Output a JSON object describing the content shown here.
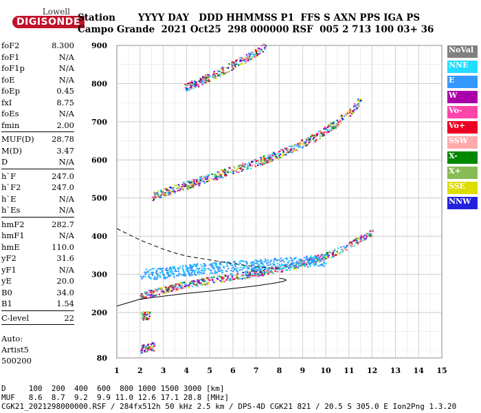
{
  "logo": {
    "brand": "Lowell",
    "name": "DIGISONDE"
  },
  "header": {
    "line1": "Station       YYYY DAY   DDD HHMMSS P1  FFS S AXN PPS IGA PS",
    "line2": "Campo Grande  2021 Oct25  298 000000 RSF  005 2 713 100 03+ 36"
  },
  "params": {
    "group1": [
      {
        "label": "foF2",
        "value": "8.300"
      },
      {
        "label": "foF1",
        "value": "N/A"
      },
      {
        "label": "foF1p",
        "value": "N/A"
      },
      {
        "label": "foE",
        "value": "N/A"
      },
      {
        "label": "foEp",
        "value": "0.45"
      },
      {
        "label": "fxI",
        "value": "8.75"
      },
      {
        "label": "foEs",
        "value": "N/A"
      },
      {
        "label": "fmin",
        "value": "2.00"
      }
    ],
    "group2": [
      {
        "label": "MUF(D)",
        "value": "28.78"
      },
      {
        "label": "M(D)",
        "value": "3.47"
      },
      {
        "label": "D",
        "value": "N/A"
      }
    ],
    "group3": [
      {
        "label": "h`F",
        "value": "247.0"
      },
      {
        "label": "h`F2",
        "value": "247.0"
      },
      {
        "label": "h`E",
        "value": "N/A"
      },
      {
        "label": "h`Es",
        "value": "N/A"
      }
    ],
    "group4": [
      {
        "label": "hmF2",
        "value": "282.7"
      },
      {
        "label": "hmF1",
        "value": "N/A"
      },
      {
        "label": "hmE",
        "value": "110.0"
      },
      {
        "label": "yF2",
        "value": "31.6"
      },
      {
        "label": "yF1",
        "value": "N/A"
      },
      {
        "label": "yE",
        "value": "20.0"
      },
      {
        "label": "B0",
        "value": "34.0"
      },
      {
        "label": "B1",
        "value": "1.54"
      }
    ],
    "group5": [
      {
        "label": "C-level",
        "value": "22"
      }
    ]
  },
  "auto": {
    "line1": "Auto:",
    "line2": "Artist5",
    "line3": "500200"
  },
  "legend": [
    {
      "label": "NoVal",
      "color": "#808080"
    },
    {
      "label": "NNE",
      "color": "#22ddff"
    },
    {
      "label": "E",
      "color": "#3399ff"
    },
    {
      "label": "W",
      "color": "#aa00aa"
    },
    {
      "label": "Vo-",
      "color": "#ff44aa"
    },
    {
      "label": "Vo+",
      "color": "#ee0022"
    },
    {
      "label": "SSW",
      "color": "#ffaaaa"
    },
    {
      "label": "X-",
      "color": "#008800"
    },
    {
      "label": "X+",
      "color": "#88bb55"
    },
    {
      "label": "SSE",
      "color": "#dddd00"
    },
    {
      "label": "NNW",
      "color": "#2222dd"
    }
  ],
  "footer": {
    "line1": "D     100  200  400  600  800 1000 1500 3000 [km]",
    "line2": "MUF   8.6  8.7  9.2  9.9 11.0 12.6 17.1 28.8 [MHz]",
    "line3": "CGK21_2021298000000.RSF / 284fx512h 50 kHz 2.5 km / DPS-4D CGK21 821 / 20.5 S 305.0 E Ion2Png 1.3.20"
  },
  "chart_data": {
    "type": "scatter",
    "xlim": [
      1,
      15
    ],
    "ylim": [
      80,
      900
    ],
    "x_ticks": [
      1,
      2,
      3,
      4,
      5,
      6,
      7,
      8,
      9,
      10,
      11,
      12,
      13,
      14,
      15
    ],
    "y_ticks": [
      80,
      200,
      300,
      400,
      500,
      600,
      700,
      800,
      900
    ],
    "grid": true,
    "traces": [
      {
        "name": "F2 O-trace",
        "color": "#ff44aa",
        "x": [
          2.0,
          3.0,
          4.0,
          5.0,
          6.0,
          7.0,
          7.5,
          8.0,
          8.5,
          9.0,
          9.5,
          10.0,
          10.5,
          11.0,
          11.5,
          12.0
        ],
        "y": [
          245,
          260,
          275,
          285,
          295,
          305,
          310,
          315,
          322,
          330,
          340,
          350,
          362,
          378,
          395,
          410
        ]
      },
      {
        "name": "F2 second hop",
        "color": "#ff44aa",
        "x": [
          2.5,
          3.5,
          4.5,
          5.5,
          6.5,
          7.5,
          8.5,
          9.5,
          10.5,
          11.0,
          11.5
        ],
        "y": [
          505,
          525,
          545,
          565,
          585,
          605,
          630,
          660,
          700,
          725,
          760
        ]
      },
      {
        "name": "third hop",
        "color": "#ff44aa",
        "x": [
          3.9,
          4.5,
          5.2,
          6.0,
          6.8,
          7.4
        ],
        "y": [
          790,
          805,
          825,
          850,
          875,
          900
        ]
      },
      {
        "name": "oblique E",
        "color": "#3399ff",
        "x": [
          2.0,
          3.0,
          4.0,
          5.0,
          6.0,
          7.0,
          8.0,
          9.0,
          10.0
        ],
        "y": [
          300,
          305,
          312,
          318,
          322,
          326,
          330,
          335,
          338
        ]
      },
      {
        "name": "sporadic low",
        "color": "#88bb55",
        "x": [
          2.0,
          2.3,
          2.6
        ],
        "y": [
          105,
          108,
          112
        ]
      },
      {
        "name": "sporadic mid",
        "color": "#008800",
        "x": [
          2.0,
          2.2,
          2.4
        ],
        "y": [
          193,
          193,
          194
        ]
      }
    ],
    "profile": {
      "x": [
        1.0,
        2.0,
        3.0,
        4.0,
        5.0,
        6.0,
        7.0,
        7.8,
        8.2,
        8.3,
        8.2,
        8.0
      ],
      "y": [
        217,
        235,
        243,
        250,
        256,
        263,
        270,
        277,
        282,
        285,
        288,
        290
      ]
    },
    "profile_dashed": {
      "x": [
        1.0,
        1.5,
        2.0,
        2.5,
        3.0,
        3.5,
        4.0,
        5.0,
        6.0,
        7.0,
        8.0
      ],
      "y": [
        420,
        405,
        390,
        378,
        366,
        356,
        348,
        338,
        328,
        320,
        315
      ]
    }
  }
}
